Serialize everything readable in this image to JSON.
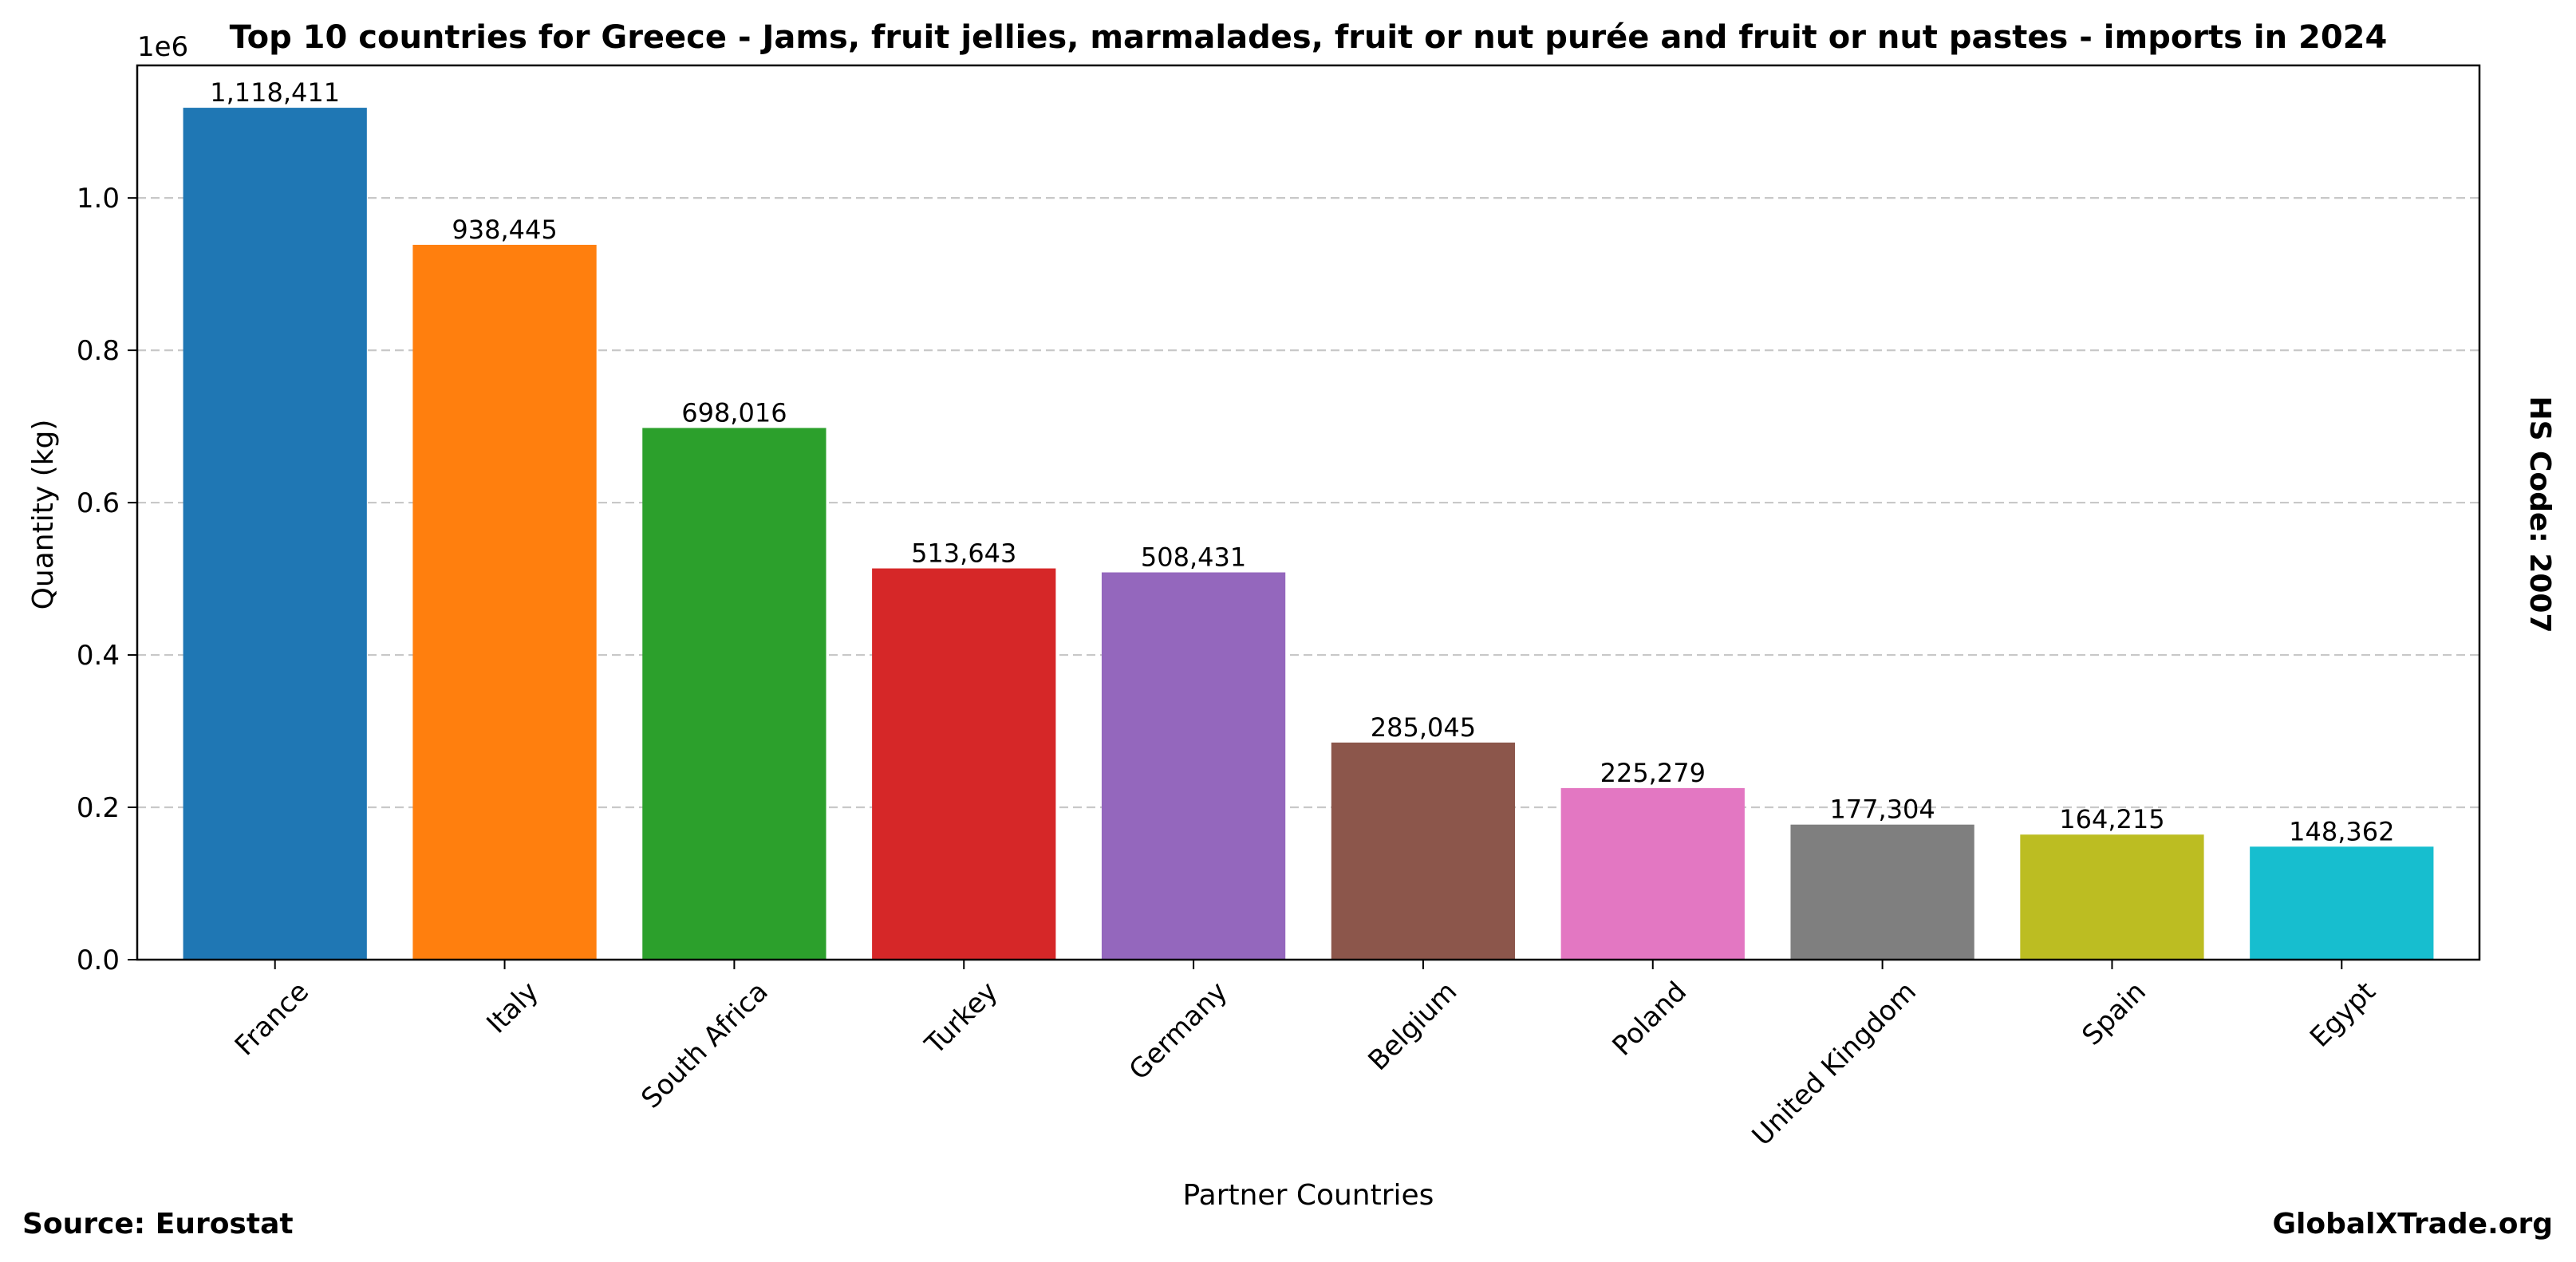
{
  "chart_data": {
    "type": "bar",
    "title": "Top 10 countries for Greece - Jams, fruit jellies, marmalades, fruit or nut purée and fruit or nut pastes - imports in 2024",
    "xlabel": "Partner Countries",
    "ylabel": "Quantity (kg)",
    "y_scale_note": "1e6",
    "ylim": [
      0,
      1174000
    ],
    "yticks": [
      0,
      200000,
      400000,
      600000,
      800000,
      1000000
    ],
    "ytick_labels": [
      "0.0",
      "0.2",
      "0.4",
      "0.6",
      "0.8",
      "1.0"
    ],
    "grid": "y-dashed",
    "categories": [
      "France",
      "Italy",
      "South Africa",
      "Turkey",
      "Germany",
      "Belgium",
      "Poland",
      "United Kingdom",
      "Spain",
      "Egypt"
    ],
    "values": [
      1118411,
      938445,
      698016,
      513643,
      508431,
      285045,
      225279,
      177304,
      164215,
      148362
    ],
    "value_labels": [
      "1,118,411",
      "938,445",
      "698,016",
      "513,643",
      "508,431",
      "285,045",
      "225,279",
      "177,304",
      "164,215",
      "148,362"
    ],
    "colors": [
      "#1f77b4",
      "#ff7f0e",
      "#2ca02c",
      "#d62728",
      "#9467bd",
      "#8c564b",
      "#e377c2",
      "#7f7f7f",
      "#bcbd22",
      "#17becf"
    ]
  },
  "source_label": "Source: Eurostat",
  "brand_label": "GlobalXTrade.org",
  "hs_code_label": "HS Code: 2007"
}
